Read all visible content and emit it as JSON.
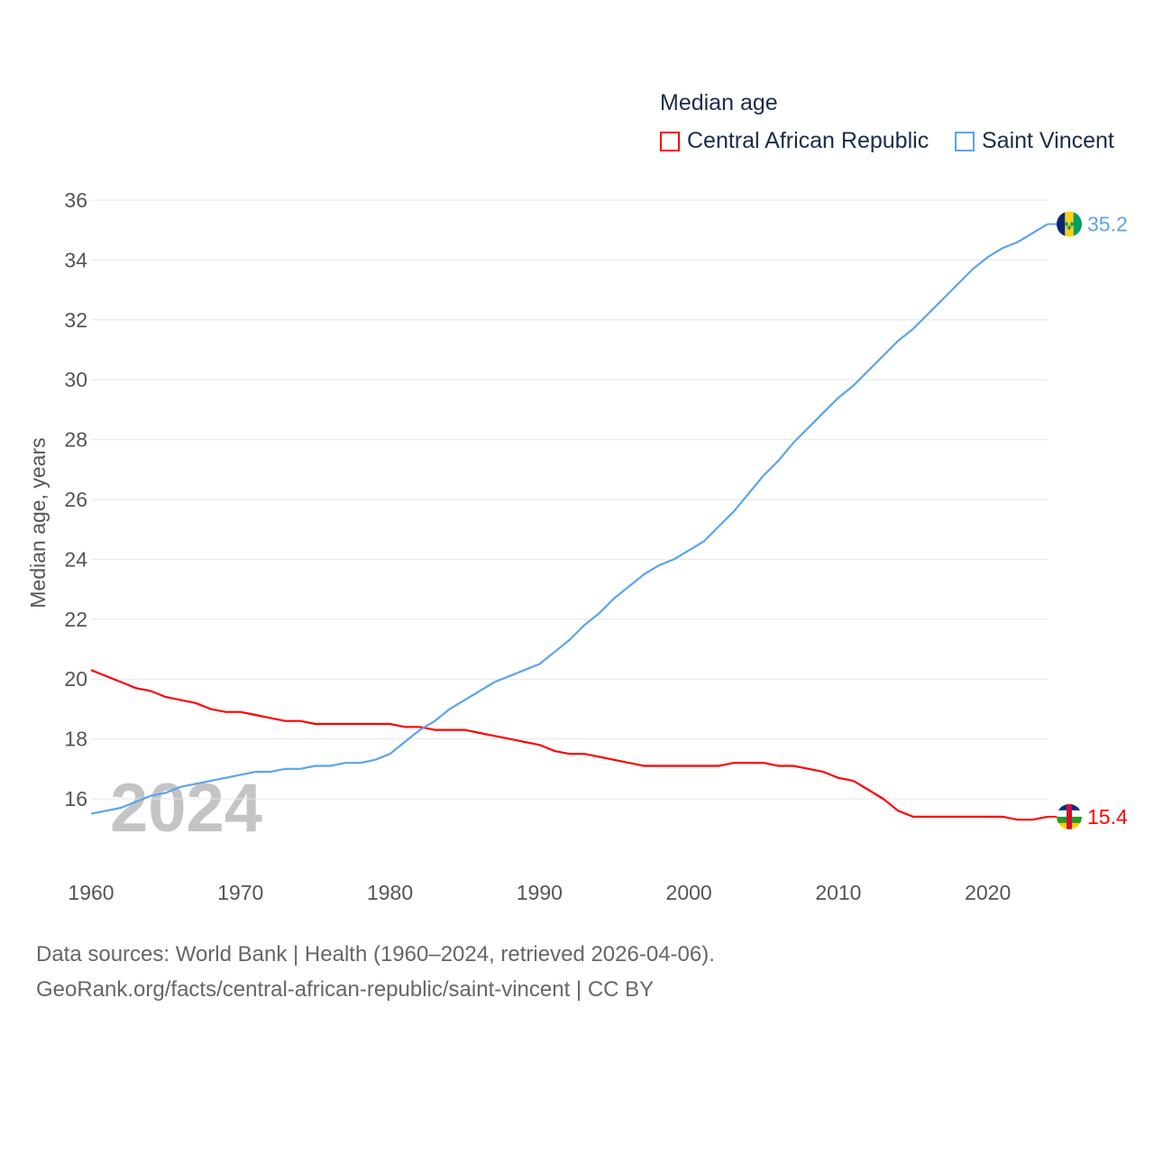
{
  "legend": {
    "title": "Median age",
    "items": [
      {
        "label": "Central African Republic",
        "color": "#ff0000"
      },
      {
        "label": "Saint Vincent",
        "color": "#5ba4ec"
      }
    ]
  },
  "footer": {
    "line1": "Data sources: World Bank | Health (1960–2024, retrieved 2026-04-06).",
    "line2": "GeoRank.org/facts/central-african-republic/saint-vincent | CC BY"
  },
  "chart_data": {
    "type": "line",
    "title": "Median age",
    "xlabel": "",
    "ylabel": "Median age, years",
    "watermark_year": "2024",
    "xlim": [
      1960,
      2024
    ],
    "ylim": [
      14.2,
      36
    ],
    "xticks": [
      "1960",
      "1970",
      "1980",
      "1990",
      "2000",
      "2010",
      "2020"
    ],
    "yticks": [
      "16",
      "18",
      "20",
      "22",
      "24",
      "26",
      "28",
      "30",
      "32",
      "34",
      "36"
    ],
    "grid": true,
    "legend_position": "top-right",
    "x_start": 1960,
    "series": [
      {
        "name": "Central African Republic",
        "color": "#ff0000",
        "end_label": "15.4",
        "values": [
          20.3,
          20.1,
          19.9,
          19.7,
          19.6,
          19.4,
          19.3,
          19.2,
          19.0,
          18.9,
          18.9,
          18.8,
          18.7,
          18.6,
          18.6,
          18.5,
          18.5,
          18.5,
          18.5,
          18.5,
          18.5,
          18.4,
          18.4,
          18.3,
          18.3,
          18.3,
          18.2,
          18.1,
          18.0,
          17.9,
          17.8,
          17.6,
          17.5,
          17.5,
          17.4,
          17.3,
          17.2,
          17.1,
          17.1,
          17.1,
          17.1,
          17.1,
          17.1,
          17.2,
          17.2,
          17.2,
          17.1,
          17.1,
          17.0,
          16.9,
          16.7,
          16.6,
          16.3,
          16.0,
          15.6,
          15.4,
          15.4,
          15.4,
          15.4,
          15.4,
          15.4,
          15.4,
          15.3,
          15.3,
          15.4
        ]
      },
      {
        "name": "Saint Vincent",
        "color": "#5ba4ec",
        "end_label": "35.2",
        "values": [
          15.5,
          15.6,
          15.7,
          15.9,
          16.1,
          16.2,
          16.4,
          16.5,
          16.6,
          16.7,
          16.8,
          16.9,
          16.9,
          17.0,
          17.0,
          17.1,
          17.1,
          17.2,
          17.2,
          17.3,
          17.5,
          17.9,
          18.3,
          18.6,
          19.0,
          19.3,
          19.6,
          19.9,
          20.1,
          20.3,
          20.5,
          20.9,
          21.3,
          21.8,
          22.2,
          22.7,
          23.1,
          23.5,
          23.8,
          24.0,
          24.3,
          24.6,
          25.1,
          25.6,
          26.2,
          26.8,
          27.3,
          27.9,
          28.4,
          28.9,
          29.4,
          29.8,
          30.3,
          30.8,
          31.3,
          31.7,
          32.2,
          32.7,
          33.2,
          33.7,
          34.1,
          34.4,
          34.6,
          34.9,
          35.2
        ]
      }
    ]
  }
}
